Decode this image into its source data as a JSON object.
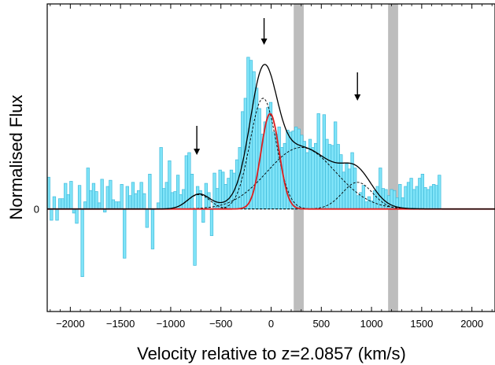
{
  "chart_data": {
    "type": "bar",
    "title": "",
    "xlabel": "Velocity relative to z=2.0857 (km/s)",
    "ylabel": "Normalised Flux",
    "xlim": [
      -2230,
      2230
    ],
    "ylim": [
      -1.0,
      2.0
    ],
    "x_ticks": [
      -2000,
      -1500,
      -1000,
      -500,
      0,
      500,
      1000,
      1500,
      2000
    ],
    "x_tick_labels": [
      "−2000",
      "−1500",
      "−1000",
      "−500",
      "0",
      "500",
      "1000",
      "1500",
      "2000"
    ],
    "y_ticks": [
      0
    ],
    "y_tick_labels": [
      "0"
    ],
    "grid": false,
    "colors": {
      "bars": "#80e4f8",
      "bar_edge": "#3fbadb",
      "total_fit": "#000000",
      "narrow_component": "#dd1f1f",
      "masked_region": "#bdbdbd",
      "components": "#000000"
    },
    "masked_regions": [
      [
        225,
        325
      ],
      [
        1165,
        1265
      ]
    ],
    "arrows_x": [
      -740,
      -70,
      860
    ],
    "histogram": {
      "bin_width": 28,
      "x_start": -2230,
      "values": [
        0.31,
        -0.11,
        0.12,
        -0.11,
        0.1,
        0.1,
        0.25,
        0.14,
        0.27,
        -0.04,
        -0.14,
        0.23,
        -0.66,
        0.07,
        0.4,
        0.18,
        0.25,
        0.17,
        0.06,
        0.29,
        -0.03,
        0.22,
        0.28,
        0.09,
        0.07,
        0.07,
        0.24,
        -0.48,
        0.22,
        0.13,
        0.26,
        0.15,
        0.18,
        0.26,
        0.15,
        -0.18,
        0.34,
        -0.39,
        0.0,
        0.06,
        0.6,
        0.2,
        0.26,
        0.47,
        0.16,
        0.17,
        0.33,
        0.14,
        0.19,
        0.52,
        0.55,
        0.34,
        -0.55,
        0.22,
        0.18,
        -0.13,
        0.25,
        0.16,
        -0.26,
        0.35,
        0.2,
        0.38,
        0.36,
        0.24,
        0.3,
        0.38,
        0.35,
        0.48,
        0.6,
        0.95,
        1.08,
        1.48,
        1.45,
        1.34,
        1.18,
        0.98,
        0.73,
        0.85,
        0.99,
        1.04,
        0.75,
        0.73,
        0.8,
        0.6,
        0.64,
        0.77,
        0.75,
        0.76,
        0.8,
        0.78,
        0.72,
        0.66,
        0.55,
        0.68,
        0.6,
        0.64,
        0.93,
        0.52,
        0.92,
        0.68,
        0.63,
        0.62,
        0.85,
        0.63,
        0.53,
        0.36,
        0.44,
        0.39,
        0.55,
        0.4,
        0.13,
        0.16,
        0.23,
        0.07,
        0.12,
        0.08,
        0.18,
        0.22,
        0.4,
        0.2,
        0.19,
        0.13,
        0.19,
        0.18,
        0.11,
        0.24,
        0.11,
        0.22,
        0.26,
        0.3,
        0.19,
        0.22,
        0.3,
        0.34,
        0.21,
        0.19,
        0.22,
        0.24,
        0.23,
        0.33
      ]
    },
    "components": [
      {
        "center": -720,
        "amplitude": 0.14,
        "sigma": 110
      },
      {
        "center": -80,
        "amplitude": 1.08,
        "sigma": 130
      },
      {
        "center": 300,
        "amplitude": 0.6,
        "sigma": 340
      },
      {
        "center": 860,
        "amplitude": 0.26,
        "sigma": 150
      }
    ],
    "narrow_component": {
      "center": -10,
      "amplitude": 0.93,
      "sigma": 90
    }
  }
}
